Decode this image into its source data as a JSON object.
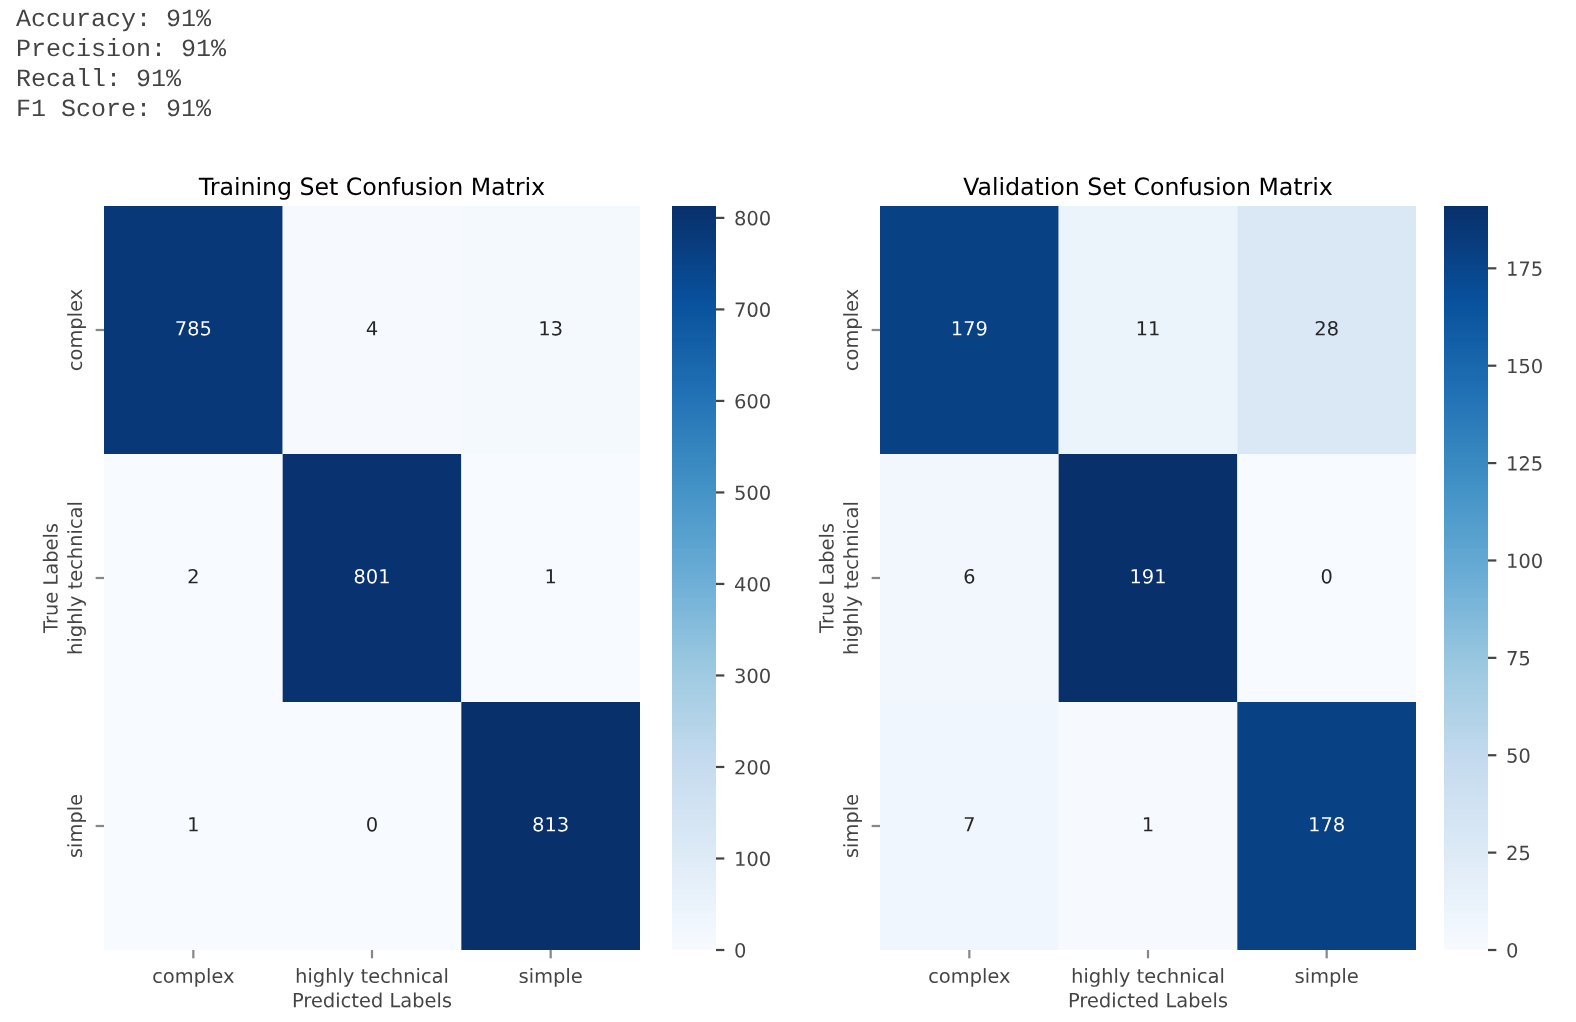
{
  "chart_data": [
    {
      "type": "heatmap",
      "title": "Training Set Confusion Matrix",
      "xlabel": "Predicted Labels",
      "ylabel": "True Labels",
      "annotations": [
        "Accuracy: 91%",
        "Precision: 91%",
        "Recall: 91%",
        "F1 Score: 91%"
      ],
      "categories": [
        "complex",
        "highly technical",
        "simple"
      ],
      "y_categories": [
        "complex",
        "highly technical",
        "simple"
      ],
      "cells": [
        [
          785,
          4,
          13
        ],
        [
          2,
          801,
          1
        ],
        [
          1,
          0,
          813
        ]
      ],
      "clim": [
        0,
        813
      ],
      "cticks": [
        0,
        100,
        200,
        300,
        400,
        500,
        600,
        700,
        800
      ],
      "data_labels": true
    },
    {
      "type": "heatmap",
      "title": "Validation Set Confusion Matrix",
      "xlabel": "Predicted Labels",
      "ylabel": "True Labels",
      "categories": [
        "complex",
        "highly technical",
        "simple"
      ],
      "y_categories": [
        "complex",
        "highly technical",
        "simple"
      ],
      "cells": [
        [
          179,
          11,
          28
        ],
        [
          6,
          191,
          0
        ],
        [
          7,
          1,
          178
        ]
      ],
      "clim": [
        0,
        191
      ],
      "cticks": [
        0,
        25,
        50,
        75,
        100,
        125,
        150,
        175
      ],
      "data_labels": true
    }
  ]
}
